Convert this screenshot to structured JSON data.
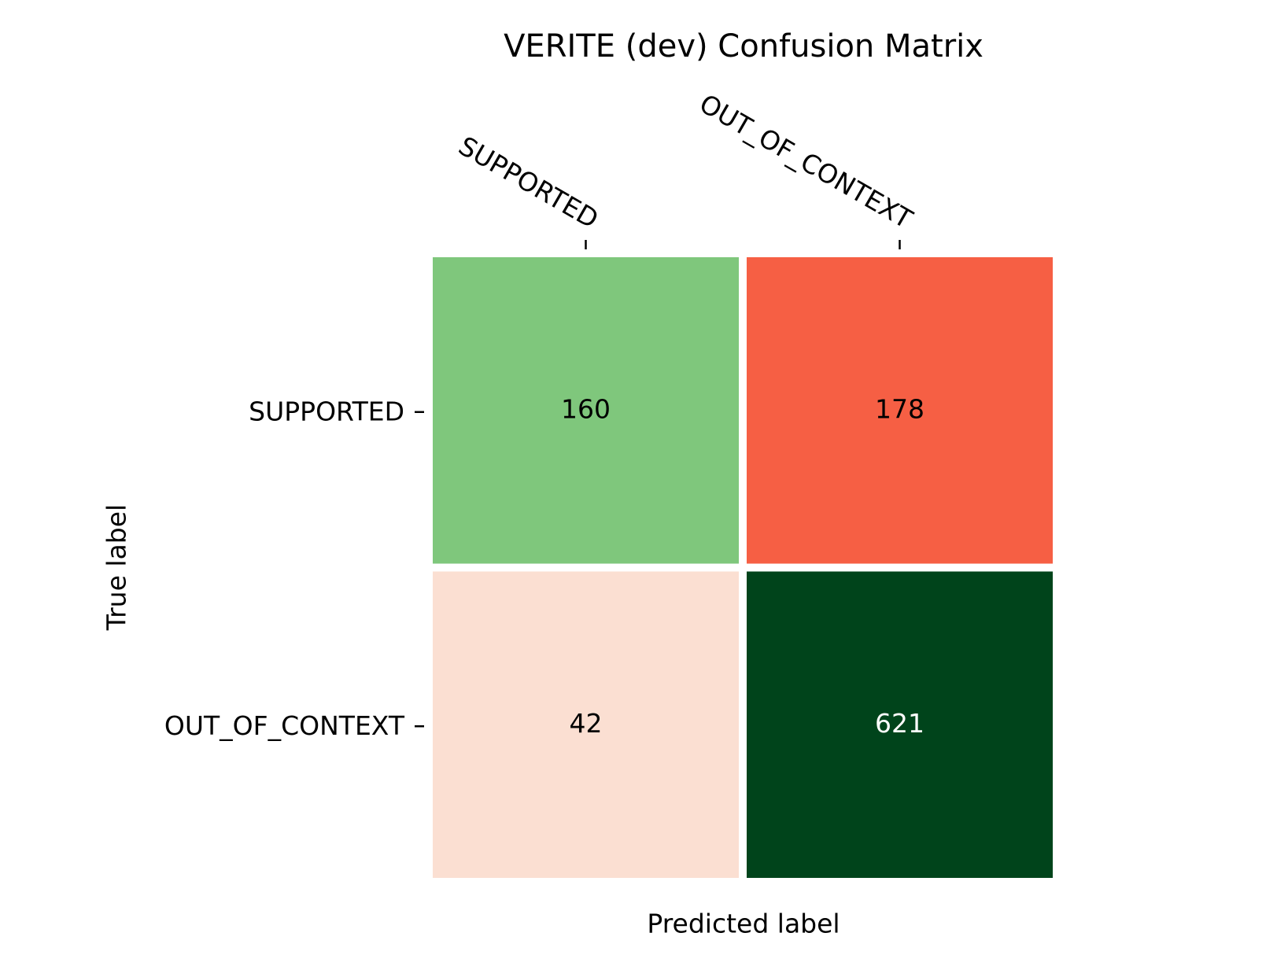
{
  "chart_data": {
    "type": "heatmap",
    "title": "VERITE (dev) Confusion Matrix",
    "x_label": "Predicted label",
    "y_label": "True label",
    "x_categories": [
      "SUPPORTED",
      "OUT_OF_CONTEXT"
    ],
    "y_categories": [
      "SUPPORTED",
      "OUT_OF_CONTEXT"
    ],
    "values": [
      [
        160,
        178
      ],
      [
        42,
        621
      ]
    ],
    "colors": [
      [
        "#7fc77c",
        "#f65f44"
      ],
      [
        "#fbdfd2",
        "#00441b"
      ]
    ]
  }
}
